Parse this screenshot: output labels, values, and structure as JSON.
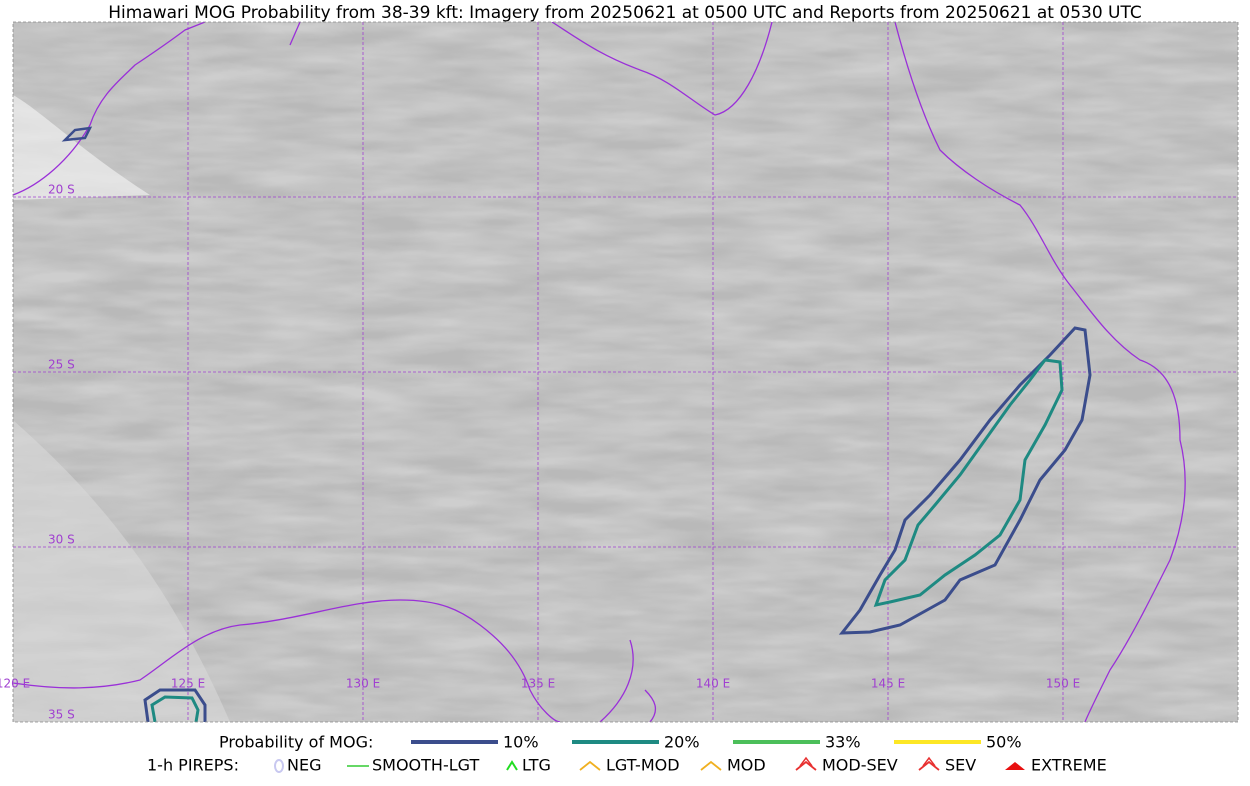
{
  "header": {
    "title": "Himawari MOG Probability from 38-39 kft: Imagery from 20250621 at 0500 UTC and Reports from 20250621 at 0530 UTC"
  },
  "map": {
    "lat_labels": [
      "20 S",
      "25 S",
      "30 S",
      "35 S"
    ],
    "lon_labels": [
      "120 E",
      "125 E",
      "130 E",
      "135 E",
      "140 E",
      "145 E",
      "150 E"
    ]
  },
  "legend": {
    "probability": {
      "label": "Probability of MOG:",
      "items": [
        {
          "label": "10%",
          "color": "#3b4d8c"
        },
        {
          "label": "20%",
          "color": "#1e8a82"
        },
        {
          "label": "33%",
          "color": "#4cbf5a"
        },
        {
          "label": "50%",
          "color": "#fde725"
        }
      ]
    },
    "pireps": {
      "label": "1-h PIREPS:",
      "items": [
        {
          "label": "NEG",
          "color": "#c8c8f0"
        },
        {
          "label": "SMOOTH-LGT",
          "color": "#33cc33"
        },
        {
          "label": "LTG",
          "color": "#22dd22"
        },
        {
          "label": "LGT-MOD",
          "color": "#f0b020"
        },
        {
          "label": "MOD",
          "color": "#f0b020"
        },
        {
          "label": "MOD-SEV",
          "color": "#e83030"
        },
        {
          "label": "SEV",
          "color": "#e83030"
        },
        {
          "label": "EXTREME",
          "color": "#e81010"
        }
      ]
    }
  }
}
